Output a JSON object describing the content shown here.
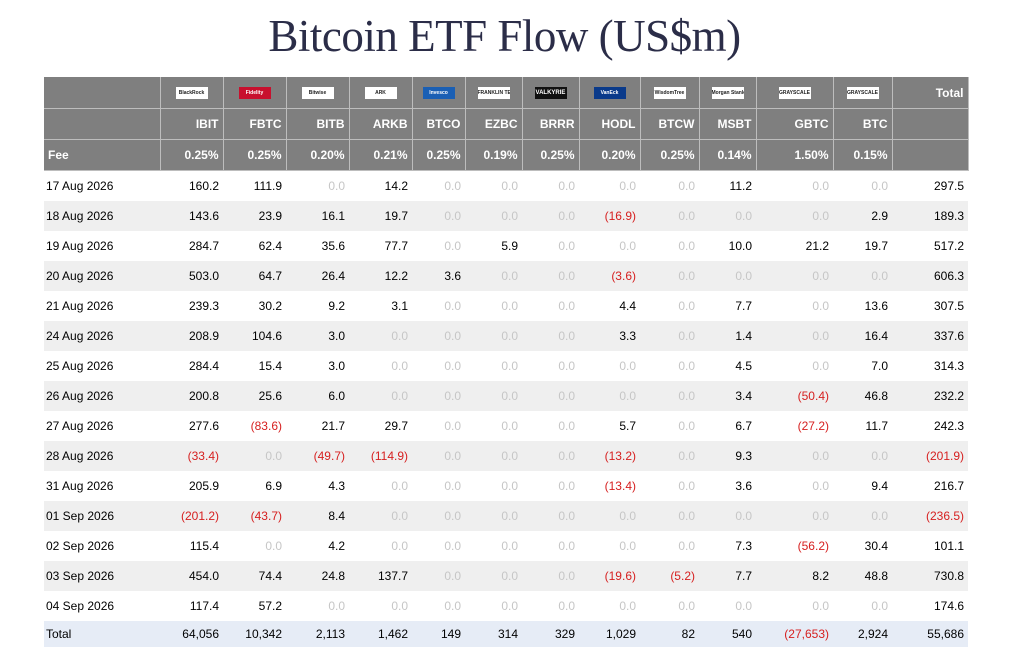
{
  "title": "Bitcoin ETF Flow (US$m)",
  "colors": {
    "header_bg": "#7f7f7f",
    "alt_row": "#efefef",
    "negative": "#d62020",
    "zero": "#c6c6c6",
    "total_bg": "#e6ecf6"
  },
  "issuers": [
    {
      "logo": "BlackRock",
      "icon": "blackrock-logo"
    },
    {
      "logo": "Fidelity",
      "icon": "fidelity-logo"
    },
    {
      "logo": "Bitwise",
      "icon": "bitwise-logo"
    },
    {
      "logo": "ARK",
      "icon": "ark-logo"
    },
    {
      "logo": "Invesco",
      "icon": "invesco-logo"
    },
    {
      "logo": "FRANKLIN TEMPLETON",
      "icon": "franklin-logo"
    },
    {
      "logo": "VALKYRIE",
      "icon": "valkyrie-logo"
    },
    {
      "logo": "VanEck",
      "icon": "vaneck-logo"
    },
    {
      "logo": "WisdomTree",
      "icon": "wisdomtree-logo"
    },
    {
      "logo": "Morgan Stanley",
      "icon": "morgan-stanley-logo"
    },
    {
      "logo": "GRAYSCALE",
      "icon": "grayscale-logo"
    },
    {
      "logo": "GRAYSCALE",
      "icon": "grayscale-mini-logo"
    }
  ],
  "total_header": "Total",
  "tickers": [
    "IBIT",
    "FBTC",
    "BITB",
    "ARKB",
    "BTCO",
    "EZBC",
    "BRRR",
    "HODL",
    "BTCW",
    "MSBT",
    "GBTC",
    "BTC"
  ],
  "fee_label": "Fee",
  "fees": [
    "0.25%",
    "0.25%",
    "0.20%",
    "0.21%",
    "0.25%",
    "0.19%",
    "0.25%",
    "0.20%",
    "0.25%",
    "0.14%",
    "1.50%",
    "0.15%"
  ],
  "rows": [
    {
      "date": "17 Aug 2026",
      "values": [
        "160.2",
        "111.9",
        "0.0",
        "14.2",
        "0.0",
        "0.0",
        "0.0",
        "0.0",
        "0.0",
        "11.2",
        "0.0",
        "0.0"
      ],
      "total": "297.5"
    },
    {
      "date": "18 Aug 2026",
      "values": [
        "143.6",
        "23.9",
        "16.1",
        "19.7",
        "0.0",
        "0.0",
        "0.0",
        "(16.9)",
        "0.0",
        "0.0",
        "0.0",
        "2.9"
      ],
      "total": "189.3"
    },
    {
      "date": "19 Aug 2026",
      "values": [
        "284.7",
        "62.4",
        "35.6",
        "77.7",
        "0.0",
        "5.9",
        "0.0",
        "0.0",
        "0.0",
        "10.0",
        "21.2",
        "19.7"
      ],
      "total": "517.2"
    },
    {
      "date": "20 Aug 2026",
      "values": [
        "503.0",
        "64.7",
        "26.4",
        "12.2",
        "3.6",
        "0.0",
        "0.0",
        "(3.6)",
        "0.0",
        "0.0",
        "0.0",
        "0.0"
      ],
      "total": "606.3"
    },
    {
      "date": "21 Aug 2026",
      "values": [
        "239.3",
        "30.2",
        "9.2",
        "3.1",
        "0.0",
        "0.0",
        "0.0",
        "4.4",
        "0.0",
        "7.7",
        "0.0",
        "13.6"
      ],
      "total": "307.5"
    },
    {
      "date": "24 Aug 2026",
      "values": [
        "208.9",
        "104.6",
        "3.0",
        "0.0",
        "0.0",
        "0.0",
        "0.0",
        "3.3",
        "0.0",
        "1.4",
        "0.0",
        "16.4"
      ],
      "total": "337.6"
    },
    {
      "date": "25 Aug 2026",
      "values": [
        "284.4",
        "15.4",
        "3.0",
        "0.0",
        "0.0",
        "0.0",
        "0.0",
        "0.0",
        "0.0",
        "4.5",
        "0.0",
        "7.0"
      ],
      "total": "314.3"
    },
    {
      "date": "26 Aug 2026",
      "values": [
        "200.8",
        "25.6",
        "6.0",
        "0.0",
        "0.0",
        "0.0",
        "0.0",
        "0.0",
        "0.0",
        "3.4",
        "(50.4)",
        "46.8"
      ],
      "total": "232.2"
    },
    {
      "date": "27 Aug 2026",
      "values": [
        "277.6",
        "(83.6)",
        "21.7",
        "29.7",
        "0.0",
        "0.0",
        "0.0",
        "5.7",
        "0.0",
        "6.7",
        "(27.2)",
        "11.7"
      ],
      "total": "242.3"
    },
    {
      "date": "28 Aug 2026",
      "values": [
        "(33.4)",
        "0.0",
        "(49.7)",
        "(114.9)",
        "0.0",
        "0.0",
        "0.0",
        "(13.2)",
        "0.0",
        "9.3",
        "0.0",
        "0.0"
      ],
      "total": "(201.9)"
    },
    {
      "date": "31 Aug 2026",
      "values": [
        "205.9",
        "6.9",
        "4.3",
        "0.0",
        "0.0",
        "0.0",
        "0.0",
        "(13.4)",
        "0.0",
        "3.6",
        "0.0",
        "9.4"
      ],
      "total": "216.7"
    },
    {
      "date": "01 Sep 2026",
      "values": [
        "(201.2)",
        "(43.7)",
        "8.4",
        "0.0",
        "0.0",
        "0.0",
        "0.0",
        "0.0",
        "0.0",
        "0.0",
        "0.0",
        "0.0"
      ],
      "total": "(236.5)"
    },
    {
      "date": "02 Sep 2026",
      "values": [
        "115.4",
        "0.0",
        "4.2",
        "0.0",
        "0.0",
        "0.0",
        "0.0",
        "0.0",
        "0.0",
        "7.3",
        "(56.2)",
        "30.4"
      ],
      "total": "101.1"
    },
    {
      "date": "03 Sep 2026",
      "values": [
        "454.0",
        "74.4",
        "24.8",
        "137.7",
        "0.0",
        "0.0",
        "0.0",
        "(19.6)",
        "(5.2)",
        "7.7",
        "8.2",
        "48.8"
      ],
      "total": "730.8"
    },
    {
      "date": "04 Sep 2026",
      "values": [
        "117.4",
        "57.2",
        "0.0",
        "0.0",
        "0.0",
        "0.0",
        "0.0",
        "0.0",
        "0.0",
        "0.0",
        "0.0",
        "0.0"
      ],
      "total": "174.6"
    }
  ],
  "totals": {
    "label": "Total",
    "values": [
      "64,056",
      "10,342",
      "2,113",
      "1,462",
      "149",
      "314",
      "329",
      "1,029",
      "82",
      "540",
      "(27,653)",
      "2,924"
    ],
    "total": "55,686"
  }
}
